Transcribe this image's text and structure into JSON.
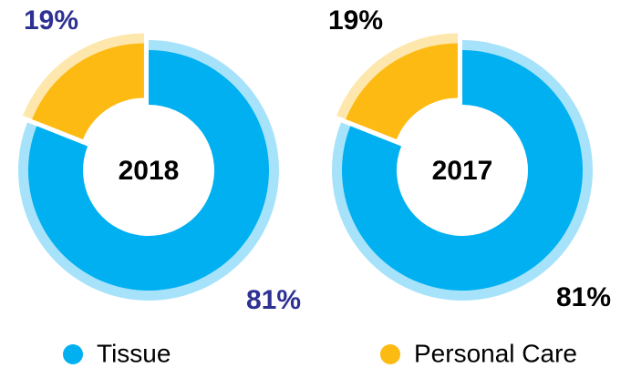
{
  "chart_data": [
    {
      "type": "donut",
      "center_label": "2018",
      "categories": [
        "Tissue",
        "Personal Care"
      ],
      "values": [
        81,
        19
      ],
      "value_labels": [
        "81%",
        "19%"
      ],
      "colors": [
        "#00b0f0",
        "#fdba12"
      ],
      "label_color": "#2e3192"
    },
    {
      "type": "donut",
      "center_label": "2017",
      "categories": [
        "Tissue",
        "Personal Care"
      ],
      "values": [
        81,
        19
      ],
      "value_labels": [
        "81%",
        "19%"
      ],
      "colors": [
        "#00b0f0",
        "#fdba12"
      ],
      "label_color": "#000000"
    }
  ]
}
